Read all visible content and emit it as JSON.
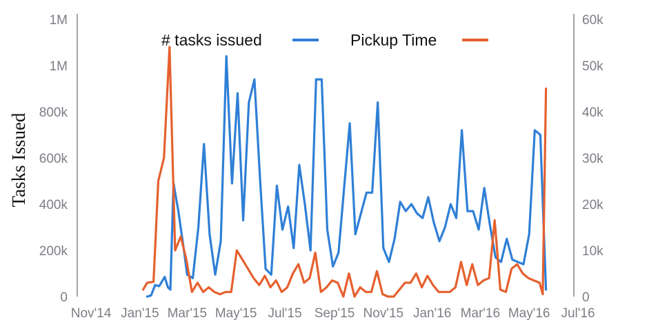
{
  "chart_data": {
    "type": "line",
    "ylabel": "Tasks Issued",
    "y2label": "",
    "xlabel": "",
    "grid": false,
    "legend_placement": "top-center",
    "x_ticks": [
      "Nov'14",
      "Jan'15",
      "Mar'15",
      "May'15",
      "Jul'15",
      "Sep'15",
      "Nov'15",
      "Jan'16",
      "Mar'16",
      "May'16",
      "Jul'16"
    ],
    "y_ticks": [
      "0",
      "200k",
      "400k",
      "600k",
      "800k",
      "1M",
      "1M"
    ],
    "y2_ticks": [
      "0",
      "10k",
      "20k",
      "30k",
      "40k",
      "50k",
      "60k"
    ],
    "ylim": [
      0,
      1200000
    ],
    "y2lim": [
      0,
      60000
    ],
    "series": [
      {
        "name": "# tasks issued",
        "axis": "left",
        "color": "#2f7fd6",
        "points": [
          [
            "2015-01-10",
            0
          ],
          [
            "2015-01-15",
            5000
          ],
          [
            "2015-01-20",
            50000
          ],
          [
            "2015-01-25",
            45000
          ],
          [
            "2015-02-01",
            85000
          ],
          [
            "2015-02-05",
            40000
          ],
          [
            "2015-02-08",
            30000
          ],
          [
            "2015-02-12",
            490000
          ],
          [
            "2015-02-18",
            370000
          ],
          [
            "2015-02-25",
            200000
          ],
          [
            "2015-03-01",
            95000
          ],
          [
            "2015-03-08",
            80000
          ],
          [
            "2015-03-15",
            300000
          ],
          [
            "2015-03-22",
            660000
          ],
          [
            "2015-03-29",
            270000
          ],
          [
            "2015-04-05",
            95000
          ],
          [
            "2015-04-12",
            240000
          ],
          [
            "2015-04-19",
            1040000
          ],
          [
            "2015-04-26",
            490000
          ],
          [
            "2015-05-03",
            880000
          ],
          [
            "2015-05-10",
            330000
          ],
          [
            "2015-05-17",
            840000
          ],
          [
            "2015-05-24",
            940000
          ],
          [
            "2015-05-31",
            510000
          ],
          [
            "2015-06-07",
            120000
          ],
          [
            "2015-06-14",
            95000
          ],
          [
            "2015-06-21",
            480000
          ],
          [
            "2015-06-28",
            290000
          ],
          [
            "2015-07-05",
            390000
          ],
          [
            "2015-07-12",
            210000
          ],
          [
            "2015-07-19",
            570000
          ],
          [
            "2015-07-26",
            400000
          ],
          [
            "2015-08-02",
            200000
          ],
          [
            "2015-08-09",
            940000
          ],
          [
            "2015-08-16",
            940000
          ],
          [
            "2015-08-23",
            290000
          ],
          [
            "2015-08-30",
            130000
          ],
          [
            "2015-09-06",
            190000
          ],
          [
            "2015-09-13",
            470000
          ],
          [
            "2015-09-20",
            750000
          ],
          [
            "2015-09-27",
            270000
          ],
          [
            "2015-10-04",
            360000
          ],
          [
            "2015-10-11",
            450000
          ],
          [
            "2015-10-18",
            450000
          ],
          [
            "2015-10-25",
            840000
          ],
          [
            "2015-11-01",
            210000
          ],
          [
            "2015-11-08",
            150000
          ],
          [
            "2015-11-15",
            250000
          ],
          [
            "2015-11-22",
            410000
          ],
          [
            "2015-11-29",
            370000
          ],
          [
            "2015-12-06",
            400000
          ],
          [
            "2015-12-13",
            360000
          ],
          [
            "2015-12-20",
            340000
          ],
          [
            "2015-12-27",
            430000
          ],
          [
            "2016-01-03",
            320000
          ],
          [
            "2016-01-10",
            240000
          ],
          [
            "2016-01-17",
            300000
          ],
          [
            "2016-01-24",
            400000
          ],
          [
            "2016-01-31",
            340000
          ],
          [
            "2016-02-07",
            720000
          ],
          [
            "2016-02-14",
            370000
          ],
          [
            "2016-02-21",
            370000
          ],
          [
            "2016-02-28",
            290000
          ],
          [
            "2016-03-06",
            470000
          ],
          [
            "2016-03-13",
            310000
          ],
          [
            "2016-03-20",
            170000
          ],
          [
            "2016-03-27",
            150000
          ],
          [
            "2016-04-03",
            250000
          ],
          [
            "2016-04-10",
            160000
          ],
          [
            "2016-04-17",
            150000
          ],
          [
            "2016-04-24",
            140000
          ],
          [
            "2016-05-01",
            270000
          ],
          [
            "2016-05-08",
            720000
          ],
          [
            "2016-05-15",
            700000
          ],
          [
            "2016-05-22",
            30000
          ]
        ]
      },
      {
        "name": "Pickup Time",
        "axis": "right",
        "color": "#e5602e",
        "points": [
          [
            "2015-01-05",
            1500
          ],
          [
            "2015-01-10",
            3000
          ],
          [
            "2015-01-18",
            3200
          ],
          [
            "2015-01-24",
            25000
          ],
          [
            "2015-01-31",
            30000
          ],
          [
            "2015-02-07",
            54000
          ],
          [
            "2015-02-14",
            10000
          ],
          [
            "2015-02-21",
            13000
          ],
          [
            "2015-02-28",
            8000
          ],
          [
            "2015-03-07",
            1000
          ],
          [
            "2015-03-14",
            3000
          ],
          [
            "2015-03-21",
            1000
          ],
          [
            "2015-03-28",
            2000
          ],
          [
            "2015-04-04",
            1000
          ],
          [
            "2015-04-11",
            500
          ],
          [
            "2015-04-18",
            1000
          ],
          [
            "2015-04-25",
            1000
          ],
          [
            "2015-05-02",
            10000
          ],
          [
            "2015-05-09",
            8000
          ],
          [
            "2015-05-16",
            6000
          ],
          [
            "2015-05-23",
            4000
          ],
          [
            "2015-05-30",
            2500
          ],
          [
            "2015-06-06",
            4500
          ],
          [
            "2015-06-13",
            2000
          ],
          [
            "2015-06-20",
            3500
          ],
          [
            "2015-06-27",
            1000
          ],
          [
            "2015-07-04",
            2000
          ],
          [
            "2015-07-11",
            5000
          ],
          [
            "2015-07-18",
            7000
          ],
          [
            "2015-07-25",
            3000
          ],
          [
            "2015-08-01",
            4000
          ],
          [
            "2015-08-08",
            9500
          ],
          [
            "2015-08-15",
            1000
          ],
          [
            "2015-08-22",
            2000
          ],
          [
            "2015-08-29",
            3500
          ],
          [
            "2015-09-05",
            3000
          ],
          [
            "2015-09-12",
            0
          ],
          [
            "2015-09-19",
            5000
          ],
          [
            "2015-09-26",
            0
          ],
          [
            "2015-10-03",
            2000
          ],
          [
            "2015-10-10",
            1000
          ],
          [
            "2015-10-17",
            1000
          ],
          [
            "2015-10-24",
            5500
          ],
          [
            "2015-10-31",
            500
          ],
          [
            "2015-11-07",
            0
          ],
          [
            "2015-11-14",
            0
          ],
          [
            "2015-11-21",
            1500
          ],
          [
            "2015-11-28",
            3000
          ],
          [
            "2015-12-05",
            3000
          ],
          [
            "2015-12-12",
            5000
          ],
          [
            "2015-12-19",
            2000
          ],
          [
            "2015-12-26",
            4500
          ],
          [
            "2016-01-02",
            2500
          ],
          [
            "2016-01-09",
            1000
          ],
          [
            "2016-01-16",
            1000
          ],
          [
            "2016-01-23",
            1000
          ],
          [
            "2016-01-30",
            2000
          ],
          [
            "2016-02-06",
            7500
          ],
          [
            "2016-02-13",
            2500
          ],
          [
            "2016-02-20",
            7000
          ],
          [
            "2016-02-27",
            2500
          ],
          [
            "2016-03-05",
            3500
          ],
          [
            "2016-03-12",
            4000
          ],
          [
            "2016-03-19",
            16500
          ],
          [
            "2016-03-26",
            1500
          ],
          [
            "2016-04-02",
            1000
          ],
          [
            "2016-04-09",
            6000
          ],
          [
            "2016-04-16",
            7000
          ],
          [
            "2016-04-23",
            5000
          ],
          [
            "2016-04-30",
            4000
          ],
          [
            "2016-05-07",
            3500
          ],
          [
            "2016-05-14",
            3000
          ],
          [
            "2016-05-18",
            500
          ],
          [
            "2016-05-22",
            45000
          ]
        ]
      }
    ]
  }
}
